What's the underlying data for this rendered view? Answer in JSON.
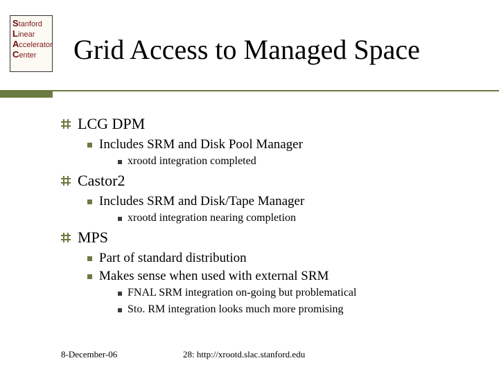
{
  "logo": {
    "l1_cap": "S",
    "l1_rest": "tanford",
    "l2_cap": "L",
    "l2_rest": "inear",
    "l3_cap": "A",
    "l3_rest": "ccelerator",
    "l4_cap": "C",
    "l4_rest": "enter"
  },
  "title": "Grid Access to Managed Space",
  "items": [
    {
      "label": "LCG DPM",
      "sub": [
        {
          "label": "Includes SRM and Disk Pool Manager",
          "sub": [
            {
              "label": "xrootd integration completed"
            }
          ]
        }
      ]
    },
    {
      "label": "Castor2",
      "sub": [
        {
          "label": "Includes SRM and Disk/Tape Manager",
          "sub": [
            {
              "label": "xrootd integration nearing completion"
            }
          ]
        }
      ]
    },
    {
      "label": "MPS",
      "sub": [
        {
          "label": "Part of standard distribution"
        },
        {
          "label": "Makes sense when used with external SRM",
          "sub": [
            {
              "label": "FNAL SRM integration on-going but problematical"
            },
            {
              "label": "Sto. RM integration looks much more promising"
            }
          ]
        }
      ]
    }
  ],
  "footer": {
    "date": "8-December-06",
    "page": "28: http://xrootd.slac.stanford.edu"
  },
  "colors": {
    "accent": "#6b7a3f"
  }
}
